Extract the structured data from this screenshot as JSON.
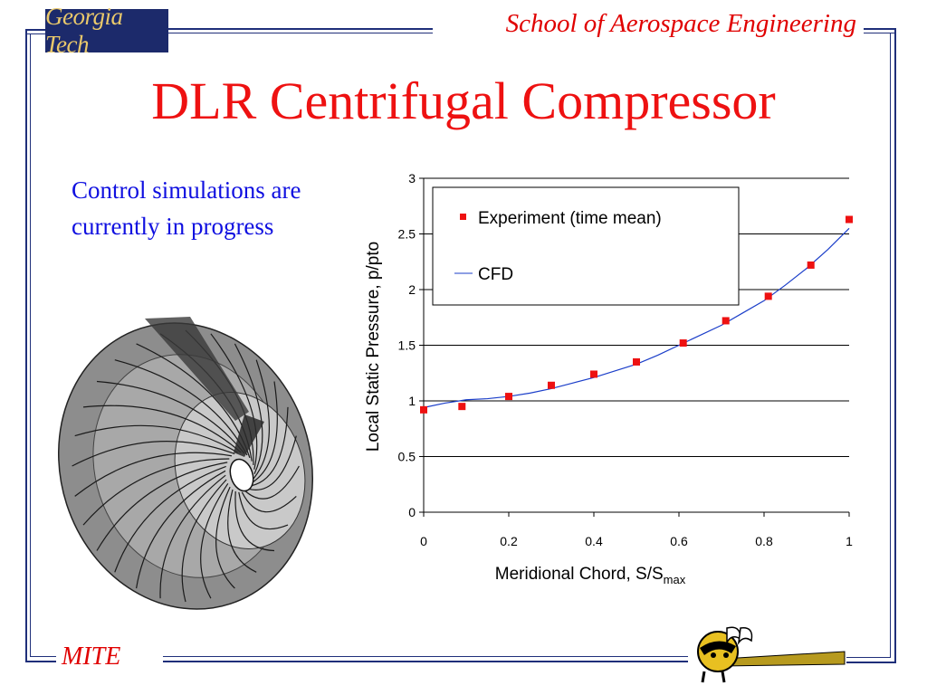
{
  "header": {
    "logo_text": "Georgia Tech",
    "school": "School of Aerospace Engineering"
  },
  "slide": {
    "title": "DLR Centrifugal Compressor",
    "bullet": "Control simulations are currently in progress"
  },
  "footer": {
    "left_label": "MITE"
  },
  "colors": {
    "frame": "#1f2f7a",
    "title": "#ee1111",
    "bullet": "#1010e0",
    "experiment_marker": "#ee1111",
    "cfd_line": "#1b3ec9"
  },
  "chart_data": {
    "type": "scatter",
    "xlabel": "Meridional Chord, S/S",
    "xlabel_subscript": "max",
    "ylabel": "Local Static Pressure, p/pto",
    "xlim": [
      0,
      1
    ],
    "ylim": [
      0,
      3
    ],
    "x_ticks": [
      "0",
      "0.2",
      "0.4",
      "0.6",
      "0.8",
      "1"
    ],
    "y_ticks": [
      "0",
      "0.5",
      "1",
      "1.5",
      "2",
      "2.5",
      "3"
    ],
    "grid": "horizontal",
    "legend_position": "top-left",
    "series": [
      {
        "name": "Experiment (time mean)",
        "style": "marker",
        "x": [
          0.0,
          0.09,
          0.2,
          0.3,
          0.4,
          0.5,
          0.61,
          0.71,
          0.81,
          0.91,
          1.0
        ],
        "y": [
          0.92,
          0.95,
          1.04,
          1.14,
          1.24,
          1.35,
          1.52,
          1.72,
          1.94,
          2.22,
          2.63
        ]
      },
      {
        "name": "CFD",
        "style": "line",
        "x": [
          0.0,
          0.05,
          0.1,
          0.15,
          0.2,
          0.25,
          0.3,
          0.35,
          0.4,
          0.45,
          0.5,
          0.55,
          0.6,
          0.65,
          0.7,
          0.75,
          0.8,
          0.85,
          0.9,
          0.95,
          1.0
        ],
        "y": [
          0.94,
          0.98,
          1.01,
          1.02,
          1.04,
          1.07,
          1.11,
          1.16,
          1.21,
          1.27,
          1.33,
          1.41,
          1.5,
          1.59,
          1.68,
          1.79,
          1.9,
          2.04,
          2.19,
          2.36,
          2.55
        ]
      }
    ]
  }
}
